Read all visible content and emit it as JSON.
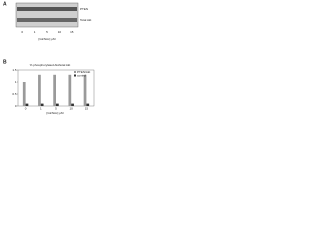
{
  "blot": {
    "panel_label": "A",
    "rows": [
      "PTEN",
      "Total Akt"
    ],
    "lanes": [
      "0",
      "1",
      "5",
      "10",
      "15"
    ],
    "xlabel": "[GlcNAc] μM"
  },
  "chart_data": {
    "type": "bar",
    "panel_label": "B",
    "title": "% phosphorylated Akt/total Akt",
    "categories": [
      "0",
      "1",
      "5",
      "10",
      "15"
    ],
    "xlabel": "[GlcNAc] μM",
    "series": [
      {
        "name": "PTEN/Akt",
        "color": "#9a9a9a",
        "values": [
          1.0,
          1.3,
          1.3,
          1.3,
          1.3
        ]
      },
      {
        "name": "control",
        "color": "#333333",
        "values": [
          0.1,
          0.1,
          0.1,
          0.1,
          0.1
        ]
      }
    ],
    "ylim": [
      0,
      1.5
    ],
    "yticks": [
      0,
      0.5,
      1,
      1.5
    ],
    "legend": "upper-right"
  }
}
